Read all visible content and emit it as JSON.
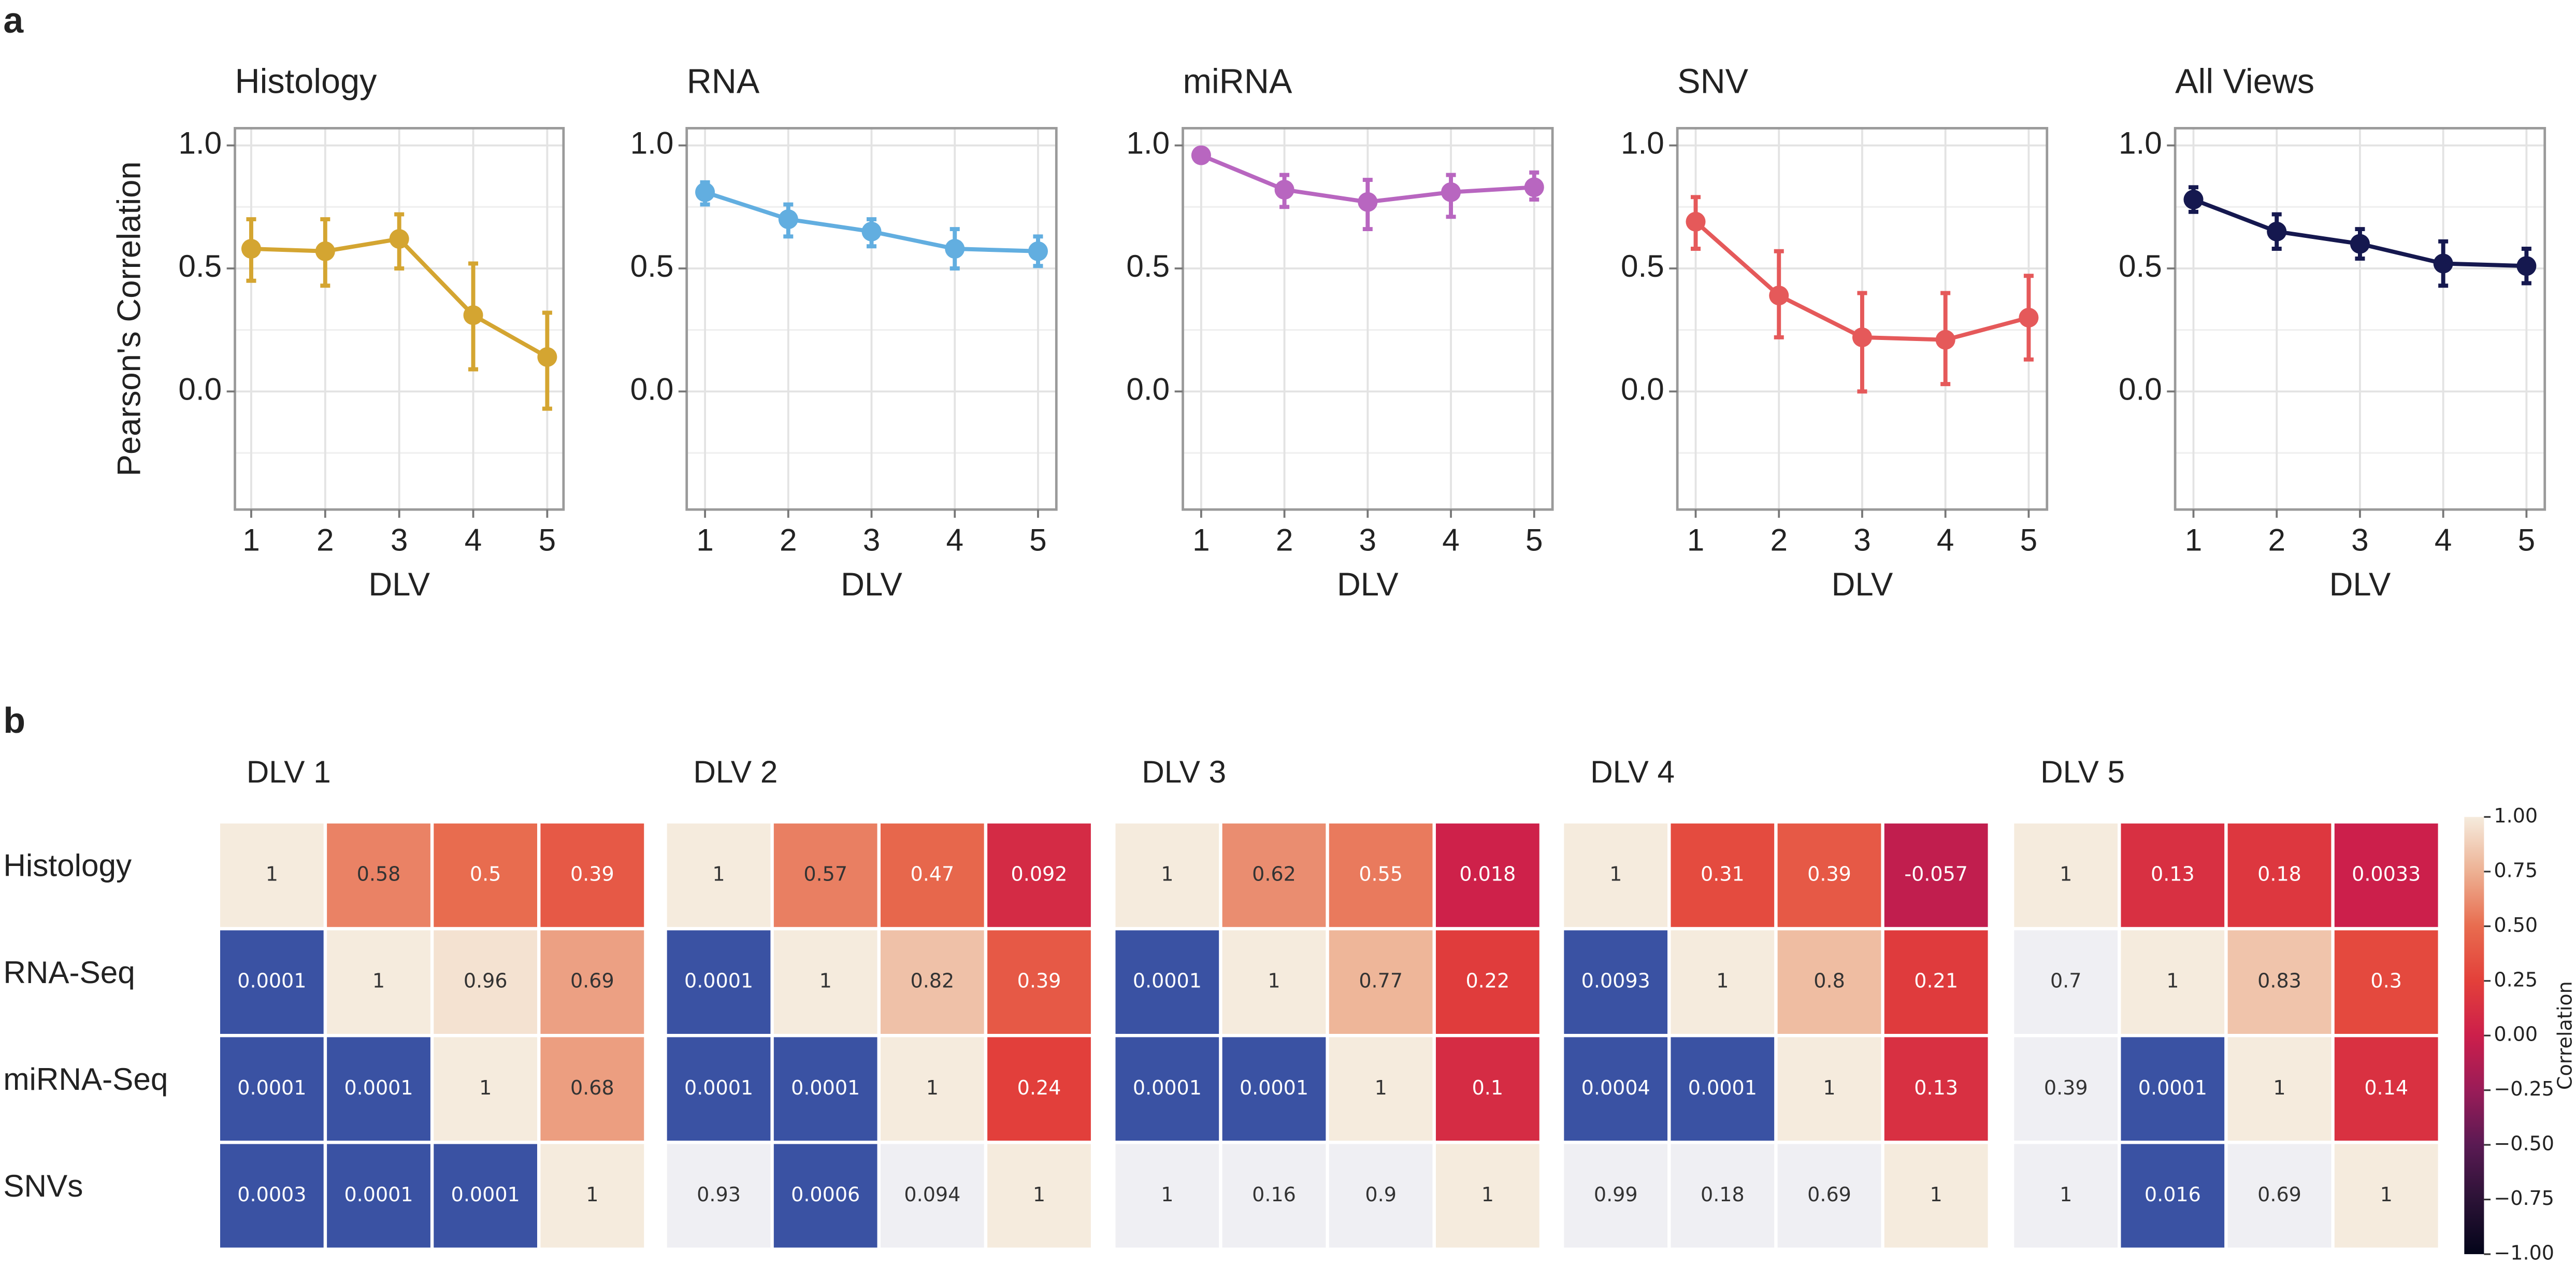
{
  "panel_labels": [
    "a",
    "b"
  ],
  "chart_data": [
    {
      "type": "line",
      "title": "Histology",
      "xlabel": "DLV",
      "ylabel": "Pearson's Correlation",
      "color": "#d4a531",
      "x": [
        1,
        2,
        3,
        4,
        5
      ],
      "values": [
        0.58,
        0.57,
        0.62,
        0.31,
        0.14
      ],
      "lower": [
        0.45,
        0.43,
        0.5,
        0.09,
        -0.07
      ],
      "upper": [
        0.7,
        0.7,
        0.72,
        0.52,
        0.32
      ],
      "xlim": [
        0.78,
        5.22
      ],
      "xticks": [
        1,
        2,
        3,
        4,
        5
      ],
      "ylim": [
        -0.48,
        1.07
      ],
      "yticks": [
        {
          "value": 1,
          "label": "1.0"
        },
        {
          "value": 0.5,
          "label": "0.5"
        },
        {
          "value": 0,
          "label": "0.0"
        }
      ],
      "y_minor_ticks": [
        -0.25,
        0.25,
        0.75
      ],
      "grid": true
    },
    {
      "type": "line",
      "title": "RNA",
      "xlabel": "DLV",
      "color": "#62aee0",
      "x": [
        1,
        2,
        3,
        4,
        5
      ],
      "values": [
        0.81,
        0.7,
        0.65,
        0.58,
        0.57
      ],
      "lower": [
        0.76,
        0.63,
        0.59,
        0.5,
        0.51
      ],
      "upper": [
        0.85,
        0.76,
        0.7,
        0.66,
        0.63
      ],
      "xlim": [
        0.78,
        5.22
      ],
      "xticks": [
        1,
        2,
        3,
        4,
        5
      ],
      "ylim": [
        -0.48,
        1.07
      ],
      "yticks": [
        {
          "value": 1,
          "label": "1.0"
        },
        {
          "value": 0.5,
          "label": "0.5"
        },
        {
          "value": 0,
          "label": "0.0"
        }
      ],
      "y_minor_ticks": [
        -0.25,
        0.25,
        0.75
      ],
      "grid": true
    },
    {
      "type": "line",
      "title": "miRNA",
      "xlabel": "DLV",
      "color": "#b866c0",
      "x": [
        1,
        2,
        3,
        4,
        5
      ],
      "values": [
        0.96,
        0.82,
        0.77,
        0.81,
        0.83
      ],
      "lower": [
        0.94,
        0.75,
        0.66,
        0.71,
        0.78
      ],
      "upper": [
        0.98,
        0.88,
        0.86,
        0.88,
        0.89
      ],
      "xlim": [
        0.78,
        5.22
      ],
      "xticks": [
        1,
        2,
        3,
        4,
        5
      ],
      "ylim": [
        -0.48,
        1.07
      ],
      "yticks": [
        {
          "value": 1,
          "label": "1.0"
        },
        {
          "value": 0.5,
          "label": "0.5"
        },
        {
          "value": 0,
          "label": "0.0"
        }
      ],
      "y_minor_ticks": [
        -0.25,
        0.25,
        0.75
      ],
      "grid": true
    },
    {
      "type": "line",
      "title": "SNV",
      "xlabel": "DLV",
      "color": "#e5595a",
      "x": [
        1,
        2,
        3,
        4,
        5
      ],
      "values": [
        0.69,
        0.39,
        0.22,
        0.21,
        0.3
      ],
      "lower": [
        0.58,
        0.22,
        0,
        0.03,
        0.13
      ],
      "upper": [
        0.79,
        0.57,
        0.4,
        0.4,
        0.47
      ],
      "xlim": [
        0.78,
        5.22
      ],
      "xticks": [
        1,
        2,
        3,
        4,
        5
      ],
      "ylim": [
        -0.48,
        1.07
      ],
      "yticks": [
        {
          "value": 1,
          "label": "1.0"
        },
        {
          "value": 0.5,
          "label": "0.5"
        },
        {
          "value": 0,
          "label": "0.0"
        }
      ],
      "y_minor_ticks": [
        -0.25,
        0.25,
        0.75
      ],
      "grid": true
    },
    {
      "type": "line",
      "title": "All Views",
      "xlabel": "DLV",
      "color": "#15184f",
      "x": [
        1,
        2,
        3,
        4,
        5
      ],
      "values": [
        0.78,
        0.65,
        0.6,
        0.52,
        0.51
      ],
      "lower": [
        0.73,
        0.58,
        0.54,
        0.43,
        0.44
      ],
      "upper": [
        0.83,
        0.72,
        0.66,
        0.61,
        0.58
      ],
      "xlim": [
        0.78,
        5.22
      ],
      "xticks": [
        1,
        2,
        3,
        4,
        5
      ],
      "ylim": [
        -0.48,
        1.07
      ],
      "yticks": [
        {
          "value": 1,
          "label": "1.0"
        },
        {
          "value": 0.5,
          "label": "0.5"
        },
        {
          "value": 0,
          "label": "0.0"
        }
      ],
      "y_minor_ticks": [
        -0.25,
        0.25,
        0.75
      ],
      "grid": true
    },
    {
      "type": "heatmap",
      "title": "DLV 1",
      "row_labels": [
        "Histology",
        "RNA-Seq",
        "miRNA-Seq",
        "SNVs"
      ],
      "values": [
        [
          1,
          0.58,
          0.5,
          0.39
        ],
        [
          0.0001,
          1,
          0.96,
          0.69
        ],
        [
          0.0001,
          0.0001,
          1,
          0.68
        ],
        [
          0.0003,
          0.0001,
          0.0001,
          1
        ]
      ],
      "p_colors": [
        [
          "#3a52a3"
        ],
        [
          "#3a52a3",
          "#3a52a3"
        ],
        [
          "#3a52a3",
          "#3a52a3",
          "#3a52a3"
        ]
      ]
    },
    {
      "type": "heatmap",
      "title": "DLV 2",
      "values": [
        [
          1,
          0.57,
          0.47,
          0.092
        ],
        [
          0.0001,
          1,
          0.82,
          0.39
        ],
        [
          0.0001,
          0.0001,
          1,
          0.24
        ],
        [
          0.93,
          0.0006,
          0.094,
          1
        ]
      ],
      "p_colors": [
        [
          "#3a52a3"
        ],
        [
          "#3a52a3",
          "#3a52a3"
        ],
        [
          "#efeff3",
          "#3a52a3",
          "#efeff3"
        ]
      ]
    },
    {
      "type": "heatmap",
      "title": "DLV 3",
      "values": [
        [
          1,
          0.62,
          0.55,
          0.018
        ],
        [
          0.0001,
          1,
          0.77,
          0.22
        ],
        [
          0.0001,
          0.0001,
          1,
          0.1
        ],
        [
          1,
          0.16,
          0.9,
          1
        ]
      ],
      "p_colors": [
        [
          "#3a52a3"
        ],
        [
          "#3a52a3",
          "#3a52a3"
        ],
        [
          "#efeff3",
          "#efeff3",
          "#efeff3"
        ]
      ]
    },
    {
      "type": "heatmap",
      "title": "DLV 4",
      "values": [
        [
          1,
          0.31,
          0.39,
          -0.057
        ],
        [
          0.0093,
          1,
          0.8,
          0.21
        ],
        [
          0.0004,
          0.0001,
          1,
          0.13
        ],
        [
          0.99,
          0.18,
          0.69,
          1
        ]
      ],
      "p_colors": [
        [
          "#3a52a3"
        ],
        [
          "#3a52a3",
          "#3a52a3"
        ],
        [
          "#efeff3",
          "#efeff3",
          "#efeff3"
        ]
      ]
    },
    {
      "type": "heatmap",
      "title": "DLV 5",
      "values": [
        [
          1,
          0.13,
          0.18,
          0.0033
        ],
        [
          0.7,
          1,
          0.83,
          0.3
        ],
        [
          0.39,
          0.0001,
          1,
          0.14
        ],
        [
          1,
          0.016,
          0.69,
          1
        ]
      ],
      "p_colors": [
        [
          "#efeff3"
        ],
        [
          "#efeff3",
          "#3a52a3"
        ],
        [
          "#efeff3",
          "#3a52a3",
          "#efeff3"
        ]
      ]
    }
  ],
  "colorbar": {
    "label": "Correlation",
    "lim": [
      -1,
      1
    ],
    "colors": [
      "#03051a",
      "#2b1236",
      "#5a1a53",
      "#9a1c58",
      "#cc1f4b",
      "#e3403a",
      "#e86c4f",
      "#edb193",
      "#f5ebdd"
    ],
    "ticks": [
      {
        "value": 1,
        "label": "1.00"
      },
      {
        "value": 0.75,
        "label": "0.75"
      },
      {
        "value": 0.5,
        "label": "0.50"
      },
      {
        "value": 0.25,
        "label": "0.25"
      },
      {
        "value": 0,
        "label": "0.00"
      },
      {
        "value": -0.25,
        "label": "−0.25"
      },
      {
        "value": -0.5,
        "label": "−0.50"
      },
      {
        "value": -0.75,
        "label": "−0.75"
      },
      {
        "value": -1,
        "label": "−1.00"
      }
    ]
  }
}
